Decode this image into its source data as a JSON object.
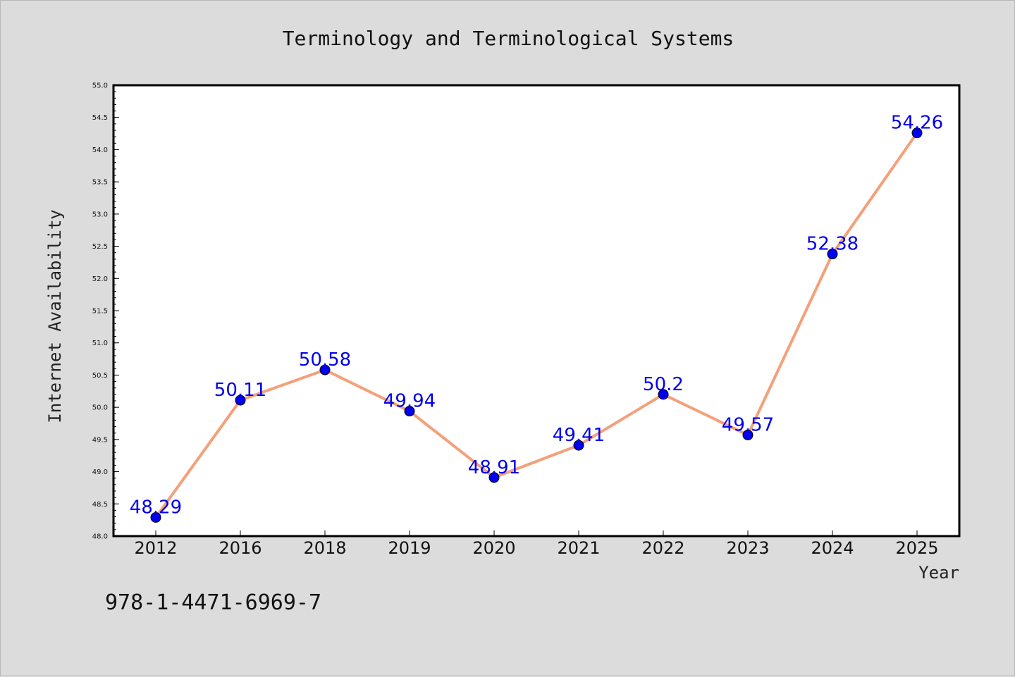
{
  "chart_data": {
    "type": "line",
    "title": "Terminology and Terminological Systems",
    "xlabel": "Year",
    "ylabel": "Internet Availability",
    "categories": [
      "2012",
      "2016",
      "2018",
      "2019",
      "2020",
      "2021",
      "2022",
      "2023",
      "2024",
      "2025"
    ],
    "series": [
      {
        "values": [
          48.29,
          50.11,
          50.58,
          49.94,
          48.91,
          49.41,
          50.2,
          49.57,
          52.38,
          54.26
        ],
        "data_labels": [
          "48.29",
          "50.11",
          "50.58",
          "49.94",
          "48.91",
          "49.41",
          "50.2",
          "49.57",
          "52.38",
          "54.26"
        ],
        "line_color": "#f4a07a",
        "marker_color": "#0000ee"
      }
    ],
    "ylim": [
      48.0,
      55.0
    ],
    "yticks": [
      "48.0",
      "48.5",
      "49.0",
      "49.5",
      "50.0",
      "50.5",
      "51.0",
      "51.5",
      "52.0",
      "52.5",
      "53.0",
      "53.5",
      "54.0",
      "54.5",
      "55.0"
    ],
    "grid": false,
    "legend": "none"
  },
  "footer": {
    "isbn": "978-1-4471-6969-7"
  },
  "colors": {
    "background": "#dcdcdc",
    "plot_background": "#ffffff",
    "axes": "#000000"
  }
}
